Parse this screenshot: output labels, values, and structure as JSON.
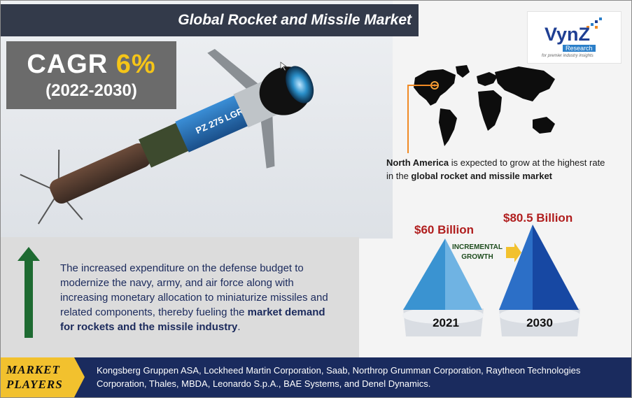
{
  "header": {
    "title": "Global Rocket and Missile Market"
  },
  "cagr": {
    "label": "CAGR",
    "value": "6%",
    "period": "(2022-2030)"
  },
  "logo": {
    "name": "VynZ",
    "sub": "Research",
    "tagline": "for premier industry insights"
  },
  "rocket": {
    "marking": "PZ 275 LGR"
  },
  "region": {
    "highlight": "North America",
    "middle": " is expected to grow at the highest rate in the ",
    "market": "global rocket and missile market"
  },
  "drivers": {
    "text": "The increased expenditure on the defense budget to modernize the navy, army, and air force along with increasing monetary allocation to miniaturize missiles and related components, thereby fueling the ",
    "bold": "market demand for rockets and the missile industry",
    "end": "."
  },
  "growth": {
    "label_line1": "INCREMENTAL",
    "label_line2": "GROWTH",
    "bars": [
      {
        "year": "2021",
        "value_label": "$60 Billion",
        "value": 60
      },
      {
        "year": "2030",
        "value_label": "$80.5 Billion",
        "value": 80.5
      }
    ]
  },
  "footer": {
    "label_line1": "MARKET",
    "label_line2": "PLAYERS",
    "players": "Kongsberg Gruppen ASA, Lockheed Martin Corporation, Saab, Northrop Grumman Corporation, Raytheon Technologies Corporation, Thales, MBDA, Leonardo S.p.A., BAE Systems, and Denel Dynamics."
  },
  "colors": {
    "title_bg": "#333a4a",
    "footer_bg": "#1a2b5e",
    "accent_yellow": "#f5c518",
    "value_red": "#b01e1e",
    "arrow_green": "#1e6b32",
    "label_gold": "#f2c12e"
  }
}
